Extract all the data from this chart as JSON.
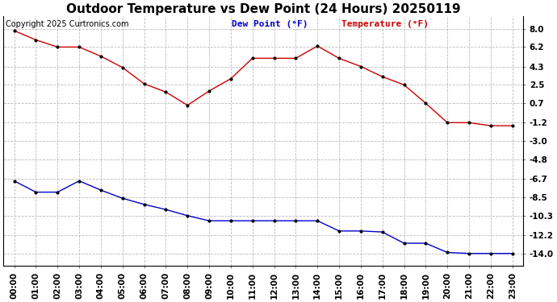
{
  "title": "Outdoor Temperature vs Dew Point (24 Hours) 20250119",
  "copyright": "Copyright 2025 Curtronics.com",
  "legend_dew": "Dew Point (°F)",
  "legend_temp": "Temperature (°F)",
  "hours": [
    "00:00",
    "01:00",
    "02:00",
    "03:00",
    "04:00",
    "05:00",
    "06:00",
    "07:00",
    "08:00",
    "09:00",
    "10:00",
    "11:00",
    "12:00",
    "13:00",
    "14:00",
    "15:00",
    "16:00",
    "17:00",
    "18:00",
    "19:00",
    "20:00",
    "21:00",
    "22:00",
    "23:00"
  ],
  "temperature": [
    7.8,
    6.9,
    6.2,
    6.2,
    5.3,
    4.2,
    2.6,
    1.8,
    0.5,
    1.9,
    3.1,
    5.1,
    5.1,
    5.1,
    6.3,
    5.1,
    4.3,
    3.3,
    2.5,
    0.7,
    -1.2,
    -1.2,
    -1.5,
    -1.5
  ],
  "dew_point": [
    -6.9,
    -8.0,
    -8.0,
    -6.9,
    -7.8,
    -8.6,
    -9.2,
    -9.7,
    -10.3,
    -10.8,
    -10.8,
    -10.8,
    -10.8,
    -10.8,
    -10.8,
    -11.8,
    -11.8,
    -11.9,
    -13.0,
    -13.0,
    -13.9,
    -14.0,
    -14.0,
    -14.0
  ],
  "temp_color": "#cc0000",
  "dew_color": "#0000cc",
  "marker_color": "#000000",
  "ylim_min": -15.2,
  "ylim_max": 9.2,
  "yticks": [
    8.0,
    6.2,
    4.3,
    2.5,
    0.7,
    -1.2,
    -3.0,
    -4.8,
    -6.7,
    -8.5,
    -10.3,
    -12.2,
    -14.0
  ],
  "background_color": "#ffffff",
  "grid_color": "#bbbbbb",
  "title_fontsize": 11,
  "legend_fontsize": 8,
  "tick_fontsize": 7.5,
  "copyright_fontsize": 7
}
